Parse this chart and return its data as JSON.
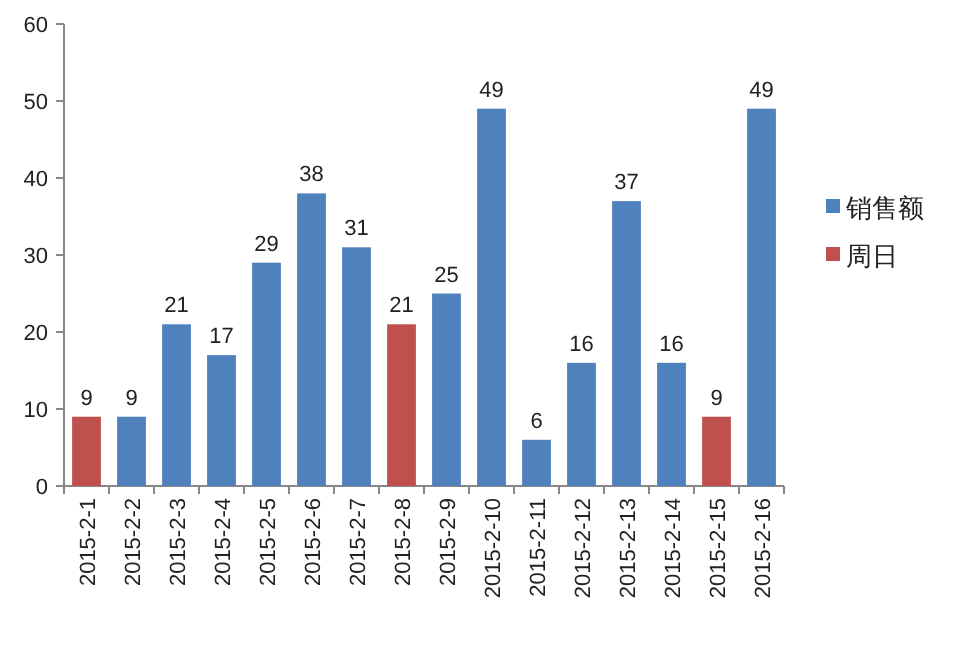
{
  "chart_data": {
    "type": "bar",
    "categories": [
      "2015-2-1",
      "2015-2-2",
      "2015-2-3",
      "2015-2-4",
      "2015-2-5",
      "2015-2-6",
      "2015-2-7",
      "2015-2-8",
      "2015-2-9",
      "2015-2-10",
      "2015-2-11",
      "2015-2-12",
      "2015-2-13",
      "2015-2-14",
      "2015-2-15",
      "2015-2-16"
    ],
    "series": [
      {
        "name": "销售额",
        "color": "#4f81bd",
        "values": [
          null,
          9,
          21,
          17,
          29,
          38,
          31,
          null,
          25,
          49,
          6,
          16,
          37,
          16,
          null,
          49
        ]
      },
      {
        "name": "周日",
        "color": "#c0504d",
        "values": [
          9,
          null,
          null,
          null,
          null,
          null,
          null,
          21,
          null,
          null,
          null,
          null,
          null,
          null,
          9,
          null
        ]
      }
    ],
    "ylim": [
      0,
      60
    ],
    "yticks": [
      0,
      10,
      20,
      30,
      40,
      50,
      60
    ],
    "data_labels": true,
    "legend": "right",
    "grid": false
  }
}
